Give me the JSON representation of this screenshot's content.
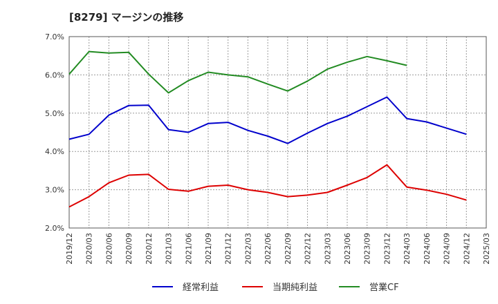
{
  "chart_data": {
    "type": "line",
    "title": "[8279]  マージンの推移",
    "xlabel": "",
    "ylabel": "",
    "ylim": [
      2.0,
      7.0
    ],
    "yticks": [
      2.0,
      3.0,
      4.0,
      5.0,
      6.0,
      7.0
    ],
    "ytick_format": "%",
    "grid": true,
    "legend_position": "bottom",
    "categories": [
      "2019/12",
      "2020/03",
      "2020/06",
      "2020/09",
      "2020/12",
      "2021/03",
      "2021/06",
      "2021/09",
      "2021/12",
      "2022/03",
      "2022/06",
      "2022/09",
      "2022/12",
      "2023/03",
      "2023/06",
      "2023/09",
      "2023/12",
      "2024/03",
      "2024/06",
      "2024/09",
      "2024/12",
      "2025/03"
    ],
    "series": [
      {
        "name": "経常利益",
        "color": "#0000cc",
        "values": [
          4.32,
          4.45,
          4.95,
          5.2,
          5.21,
          4.57,
          4.5,
          4.73,
          4.76,
          4.55,
          4.4,
          4.21,
          4.48,
          4.73,
          4.92,
          5.17,
          5.42,
          4.86,
          4.77,
          4.61,
          4.45,
          null
        ]
      },
      {
        "name": "当期純利益",
        "color": "#dd0000",
        "values": [
          2.55,
          2.82,
          3.18,
          3.38,
          3.4,
          3.01,
          2.96,
          3.09,
          3.12,
          3.0,
          2.93,
          2.82,
          2.86,
          2.93,
          3.12,
          3.32,
          3.65,
          3.07,
          2.99,
          2.88,
          2.73,
          null
        ]
      },
      {
        "name": "営業CF",
        "color": "#228b22",
        "values": [
          6.02,
          6.61,
          6.57,
          6.59,
          6.02,
          5.53,
          5.85,
          6.07,
          6.0,
          5.95,
          5.76,
          5.58,
          5.84,
          6.15,
          6.33,
          6.48,
          6.37,
          6.25,
          null,
          null,
          null,
          null
        ]
      }
    ]
  }
}
